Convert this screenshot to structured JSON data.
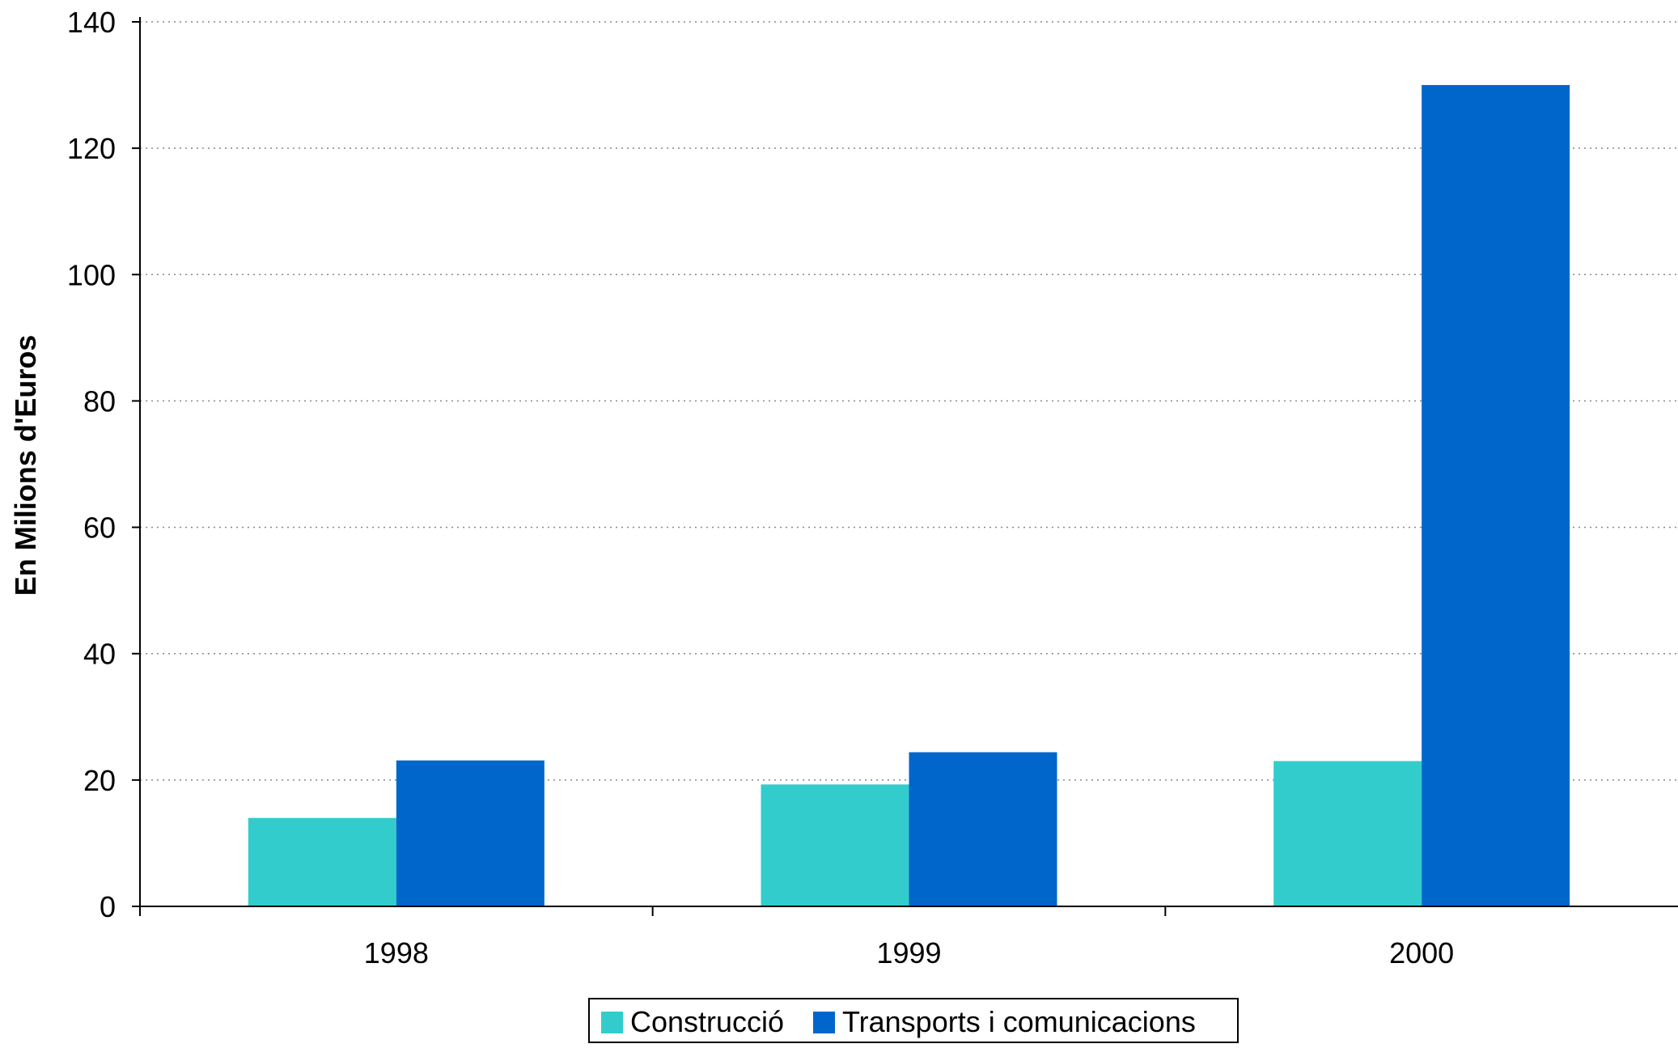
{
  "chart_data": {
    "type": "bar",
    "categories": [
      "1998",
      "1999",
      "2000"
    ],
    "series": [
      {
        "name": "Construcció",
        "values": [
          14,
          19.3,
          23
        ],
        "color": "#33cccc"
      },
      {
        "name": "Transports i comunicacions",
        "values": [
          23.1,
          24.4,
          130
        ],
        "color": "#0066cc"
      }
    ],
    "ylabel": "En Milions d'Euros",
    "xlabel": "",
    "ylim": [
      0,
      140
    ],
    "yticks": [
      "0",
      "20",
      "40",
      "60",
      "80",
      "100",
      "120",
      "140"
    ],
    "grid": true,
    "legend_position": "bottom-center"
  }
}
